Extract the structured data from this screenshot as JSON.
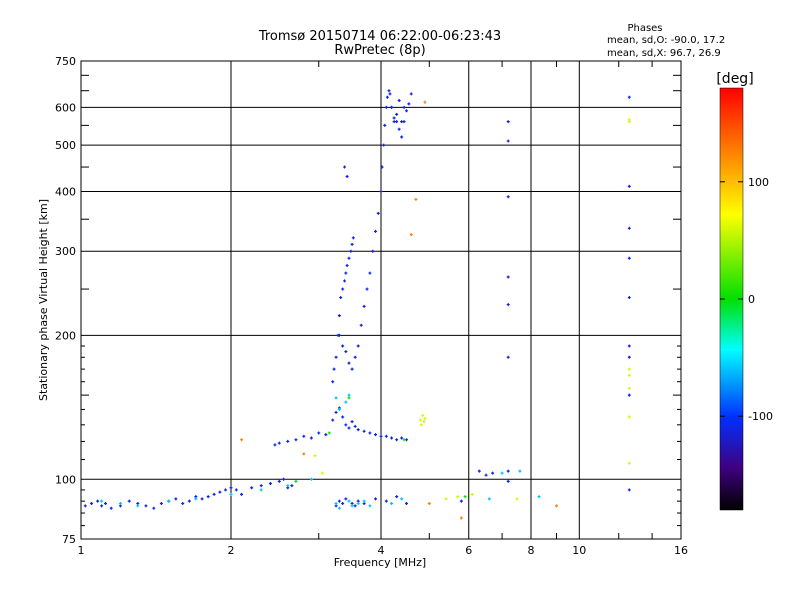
{
  "chart_data": {
    "type": "scatter",
    "title": "Tromsø 20150714 06:22:00-06:23:43",
    "subtitle": "RwPretec (8p)",
    "xlabel": "Frequency [MHz]",
    "ylabel": "Stationary phase Virtual Height [km]",
    "x_scale": "log",
    "y_scale": "log",
    "xlim": [
      1,
      16
    ],
    "ylim": [
      75,
      750
    ],
    "x_ticks": [
      1,
      2,
      4,
      6,
      8,
      10,
      16
    ],
    "y_ticks": [
      75,
      100,
      200,
      300,
      400,
      500,
      600,
      750
    ],
    "x_tick_labels": [
      "1",
      "2",
      "4",
      "6",
      "8",
      "10",
      "16"
    ],
    "y_tick_labels": [
      "75",
      "100",
      "200",
      "300",
      "400",
      "500",
      "600",
      "750"
    ],
    "grid": true,
    "phases_box": {
      "title": "Phases",
      "line1": "mean, sd,O: -90.0, 17.2",
      "line2": "mean, sd,X: 96.7, 26.9"
    },
    "colorbar": {
      "label": "[deg]",
      "range": [
        -180,
        180
      ],
      "ticks": [
        100,
        0,
        -100
      ],
      "tick_labels": [
        "100",
        "0",
        "-100"
      ]
    },
    "series": [
      {
        "phase_deg": -110,
        "x": [
          1.02,
          1.05,
          1.08,
          1.1,
          1.12,
          1.15,
          1.2,
          1.25,
          1.3,
          1.35,
          1.4,
          1.45,
          1.5,
          1.55,
          1.6,
          1.65,
          1.7,
          1.75,
          1.8,
          1.85,
          1.9,
          1.95,
          2.0,
          2.05,
          2.1,
          2.2,
          2.3,
          2.4,
          2.5,
          2.55,
          2.6,
          2.65,
          3.25,
          3.3,
          3.35,
          3.4,
          3.5,
          3.55,
          3.6,
          3.7,
          3.9,
          4.1,
          4.3,
          4.5,
          5.8,
          6.3,
          6.5,
          6.7,
          7.2,
          3.2,
          3.25,
          3.3,
          3.35,
          3.4,
          3.45,
          3.5,
          3.55,
          3.6,
          3.7,
          3.8,
          3.9,
          4.0,
          4.1,
          4.2,
          4.3,
          4.4,
          4.5,
          2.45,
          2.5,
          2.6,
          2.7,
          2.8,
          2.9,
          3.0,
          3.1,
          3.2,
          3.22,
          3.25,
          3.28,
          3.3,
          3.32,
          3.35,
          3.38,
          3.4,
          3.42,
          3.45,
          3.48,
          3.5,
          3.52,
          3.3,
          3.35,
          3.4,
          3.45,
          3.5,
          3.55,
          3.6,
          3.65,
          3.7,
          3.75,
          3.8,
          3.85,
          3.9,
          3.95,
          4.0,
          4.02,
          4.05,
          4.07,
          4.1,
          4.12,
          4.15,
          4.17,
          4.2,
          4.25,
          4.3,
          4.35,
          4.4,
          4.45,
          4.5,
          4.55,
          4.6,
          4.2,
          4.25,
          4.3,
          4.35,
          4.4,
          4.45,
          3.38,
          3.42,
          7.2,
          7.2,
          7.2,
          7.2,
          7.2,
          7.2,
          7.2,
          12.6,
          12.6,
          12.6,
          12.6,
          12.6,
          12.6,
          12.6,
          12.6,
          12.6
        ],
        "y": [
          88,
          89,
          90,
          88,
          89,
          87,
          88,
          90,
          89,
          88,
          87,
          89,
          90,
          91,
          89,
          90,
          92,
          91,
          92,
          93,
          94,
          95,
          96,
          95,
          93,
          96,
          97,
          98,
          99,
          100,
          96,
          97,
          88,
          90,
          89,
          91,
          89,
          88,
          90,
          89,
          91,
          90,
          92,
          89,
          90,
          104,
          102,
          103,
          104,
          133,
          138,
          141,
          135,
          130,
          128,
          132,
          129,
          127,
          126,
          125,
          124,
          123,
          123,
          122,
          121,
          122,
          121,
          118,
          119,
          120,
          121,
          123,
          122,
          125,
          124,
          160,
          170,
          180,
          200,
          220,
          240,
          250,
          260,
          270,
          280,
          290,
          300,
          310,
          320,
          200,
          190,
          185,
          175,
          170,
          180,
          190,
          210,
          230,
          250,
          270,
          300,
          330,
          360,
          400,
          450,
          500,
          550,
          600,
          630,
          650,
          640,
          600,
          570,
          560,
          540,
          520,
          560,
          590,
          610,
          640,
          600,
          560,
          580,
          620,
          560,
          600,
          450,
          430,
          560,
          510,
          390,
          265,
          232,
          180,
          99,
          630,
          410,
          335,
          290,
          240,
          190,
          180,
          150,
          95
        ]
      },
      {
        "phase_deg": -60,
        "x": [
          1.1,
          1.2,
          1.3,
          1.5,
          1.7,
          2.0,
          2.3,
          2.6,
          2.9,
          3.25,
          3.3,
          3.45,
          3.5,
          3.6,
          3.7,
          3.8,
          3.4,
          3.45,
          4.2,
          4.4,
          6.6,
          7.0,
          7.6,
          8.3,
          3.25,
          3.3
        ],
        "y": [
          90,
          89,
          88,
          90,
          91,
          93,
          95,
          97,
          100,
          89,
          87,
          90,
          88,
          89,
          90,
          88,
          145,
          150,
          89,
          91,
          91,
          103,
          104,
          92,
          148,
          140
        ]
      },
      {
        "phase_deg": 60,
        "x": [
          4.8,
          4.82,
          4.85,
          4.88,
          4.9,
          3.05,
          5.4,
          5.7,
          6.1,
          7.5,
          12.6,
          12.6,
          12.6,
          12.6,
          12.6,
          12.6,
          2.95,
          12.6
        ],
        "y": [
          133,
          130,
          136,
          132,
          134,
          103,
          91,
          92,
          93,
          91,
          560,
          565,
          170,
          165,
          155,
          135,
          112,
          108
        ]
      },
      {
        "phase_deg": 125,
        "x": [
          4.7,
          4.9,
          4.6,
          5.0,
          2.1,
          2.8,
          9.0,
          5.8
        ],
        "y": [
          385,
          615,
          325,
          89,
          121,
          113,
          88,
          83
        ]
      },
      {
        "phase_deg": 5,
        "x": [
          3.45,
          4.45,
          2.7,
          3.15,
          5.9
        ],
        "y": [
          148,
          121,
          99,
          125,
          92
        ]
      }
    ]
  }
}
